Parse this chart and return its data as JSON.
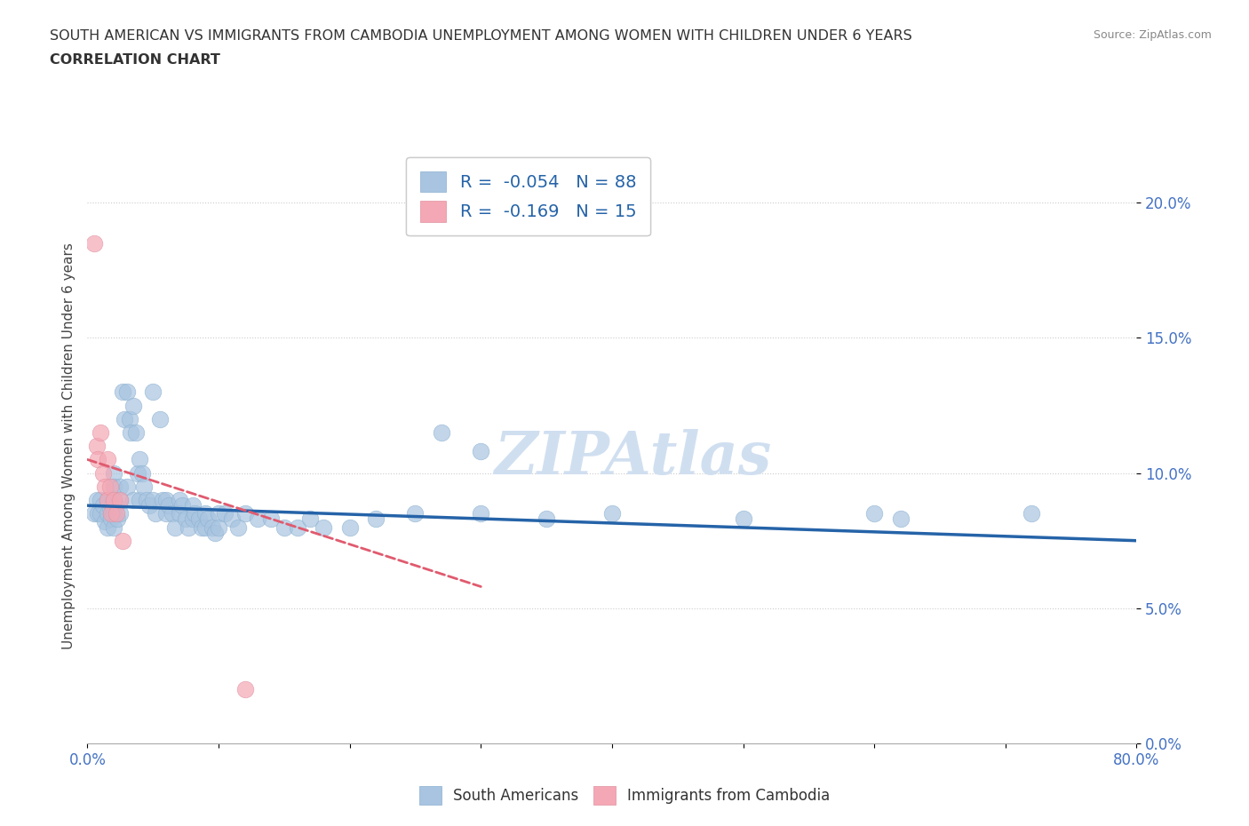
{
  "title_line1": "SOUTH AMERICAN VS IMMIGRANTS FROM CAMBODIA UNEMPLOYMENT AMONG WOMEN WITH CHILDREN UNDER 6 YEARS",
  "title_line2": "CORRELATION CHART",
  "source_text": "Source: ZipAtlas.com",
  "ylabel": "Unemployment Among Women with Children Under 6 years",
  "xlim": [
    0,
    0.8
  ],
  "ylim": [
    0.0,
    0.22
  ],
  "yticks": [
    0.0,
    0.05,
    0.1,
    0.15,
    0.2
  ],
  "ytick_labels": [
    "0.0%",
    "5.0%",
    "10.0%",
    "15.0%",
    "20.0%"
  ],
  "xticks": [
    0.0,
    0.1,
    0.2,
    0.3,
    0.4,
    0.5,
    0.6,
    0.7,
    0.8
  ],
  "xtick_labels": [
    "0.0%",
    "",
    "",
    "",
    "",
    "",
    "",
    "",
    "80.0%"
  ],
  "r_south_american": -0.054,
  "n_south_american": 88,
  "r_cambodia": -0.169,
  "n_cambodia": 15,
  "color_blue": "#a8c4e0",
  "color_pink": "#f4a7b4",
  "color_blue_line": "#2563a8",
  "color_pink_line": "#e05a6e",
  "color_title": "#333333",
  "color_axis_tick": "#4472c4",
  "watermark_color": "#d0dff0",
  "south_american_x": [
    0.005,
    0.007,
    0.008,
    0.01,
    0.01,
    0.012,
    0.013,
    0.015,
    0.015,
    0.015,
    0.017,
    0.018,
    0.019,
    0.02,
    0.02,
    0.02,
    0.02,
    0.02,
    0.022,
    0.023,
    0.025,
    0.025,
    0.025,
    0.027,
    0.028,
    0.03,
    0.03,
    0.032,
    0.033,
    0.035,
    0.035,
    0.037,
    0.038,
    0.04,
    0.04,
    0.042,
    0.043,
    0.045,
    0.047,
    0.05,
    0.05,
    0.052,
    0.055,
    0.057,
    0.06,
    0.06,
    0.062,
    0.065,
    0.067,
    0.07,
    0.07,
    0.072,
    0.075,
    0.077,
    0.08,
    0.08,
    0.082,
    0.085,
    0.087,
    0.09,
    0.09,
    0.092,
    0.095,
    0.097,
    0.1,
    0.1,
    0.105,
    0.11,
    0.115,
    0.12,
    0.13,
    0.14,
    0.15,
    0.16,
    0.17,
    0.18,
    0.2,
    0.22,
    0.25,
    0.3,
    0.35,
    0.4,
    0.5,
    0.6,
    0.62,
    0.72,
    0.3,
    0.27
  ],
  "south_american_y": [
    0.085,
    0.09,
    0.085,
    0.09,
    0.085,
    0.088,
    0.082,
    0.09,
    0.085,
    0.08,
    0.087,
    0.083,
    0.088,
    0.1,
    0.095,
    0.09,
    0.085,
    0.08,
    0.088,
    0.083,
    0.095,
    0.09,
    0.085,
    0.13,
    0.12,
    0.13,
    0.095,
    0.12,
    0.115,
    0.125,
    0.09,
    0.115,
    0.1,
    0.105,
    0.09,
    0.1,
    0.095,
    0.09,
    0.088,
    0.13,
    0.09,
    0.085,
    0.12,
    0.09,
    0.09,
    0.085,
    0.088,
    0.085,
    0.08,
    0.09,
    0.085,
    0.088,
    0.083,
    0.08,
    0.088,
    0.083,
    0.085,
    0.083,
    0.08,
    0.085,
    0.08,
    0.083,
    0.08,
    0.078,
    0.085,
    0.08,
    0.085,
    0.083,
    0.08,
    0.085,
    0.083,
    0.083,
    0.08,
    0.08,
    0.083,
    0.08,
    0.08,
    0.083,
    0.085,
    0.085,
    0.083,
    0.085,
    0.083,
    0.085,
    0.083,
    0.085,
    0.108,
    0.115
  ],
  "cambodia_x": [
    0.005,
    0.007,
    0.008,
    0.01,
    0.012,
    0.013,
    0.015,
    0.015,
    0.017,
    0.018,
    0.02,
    0.022,
    0.025,
    0.027,
    0.12
  ],
  "cambodia_y": [
    0.185,
    0.11,
    0.105,
    0.115,
    0.1,
    0.095,
    0.105,
    0.09,
    0.095,
    0.085,
    0.09,
    0.085,
    0.09,
    0.075,
    0.02
  ],
  "blue_line_x0": 0.0,
  "blue_line_x1": 0.8,
  "blue_line_y0": 0.088,
  "blue_line_y1": 0.075,
  "pink_line_x0": 0.0,
  "pink_line_x1": 0.3,
  "pink_line_y0": 0.105,
  "pink_line_y1": 0.058
}
